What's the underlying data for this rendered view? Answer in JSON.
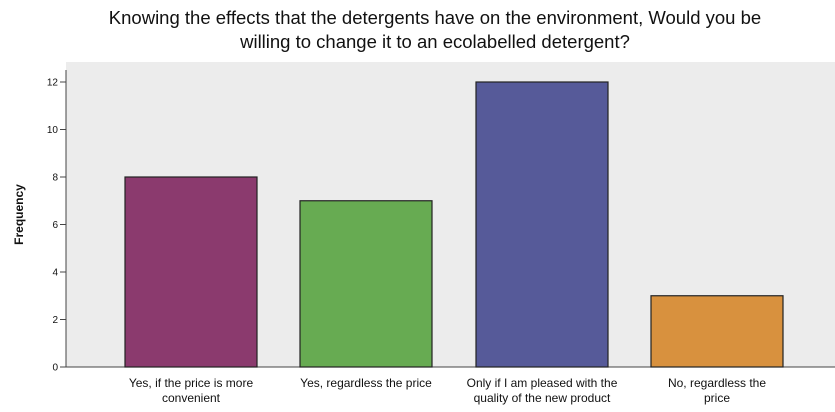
{
  "chart_data": {
    "type": "bar",
    "title_lines": [
      "Knowing the effects that the detergents have on the environment, Would you be",
      "willing to change it to an ecolabelled detergent?"
    ],
    "xlabel": "",
    "ylabel": "Frequency",
    "ylim": [
      0,
      12
    ],
    "yticks": [
      0,
      2,
      4,
      6,
      8,
      10,
      12
    ],
    "grid": false,
    "categories": [
      [
        "Yes, if the price is more",
        "convenient"
      ],
      [
        "Yes, regardless the price"
      ],
      [
        "Only if I am pleased with the",
        "quality of the new product"
      ],
      [
        "No, regardless the",
        "price"
      ]
    ],
    "values": [
      8,
      7,
      12,
      3
    ],
    "colors": [
      "#8b3a6e",
      "#67ab52",
      "#565a99",
      "#d8913e"
    ],
    "plot_background": "#ececec"
  }
}
